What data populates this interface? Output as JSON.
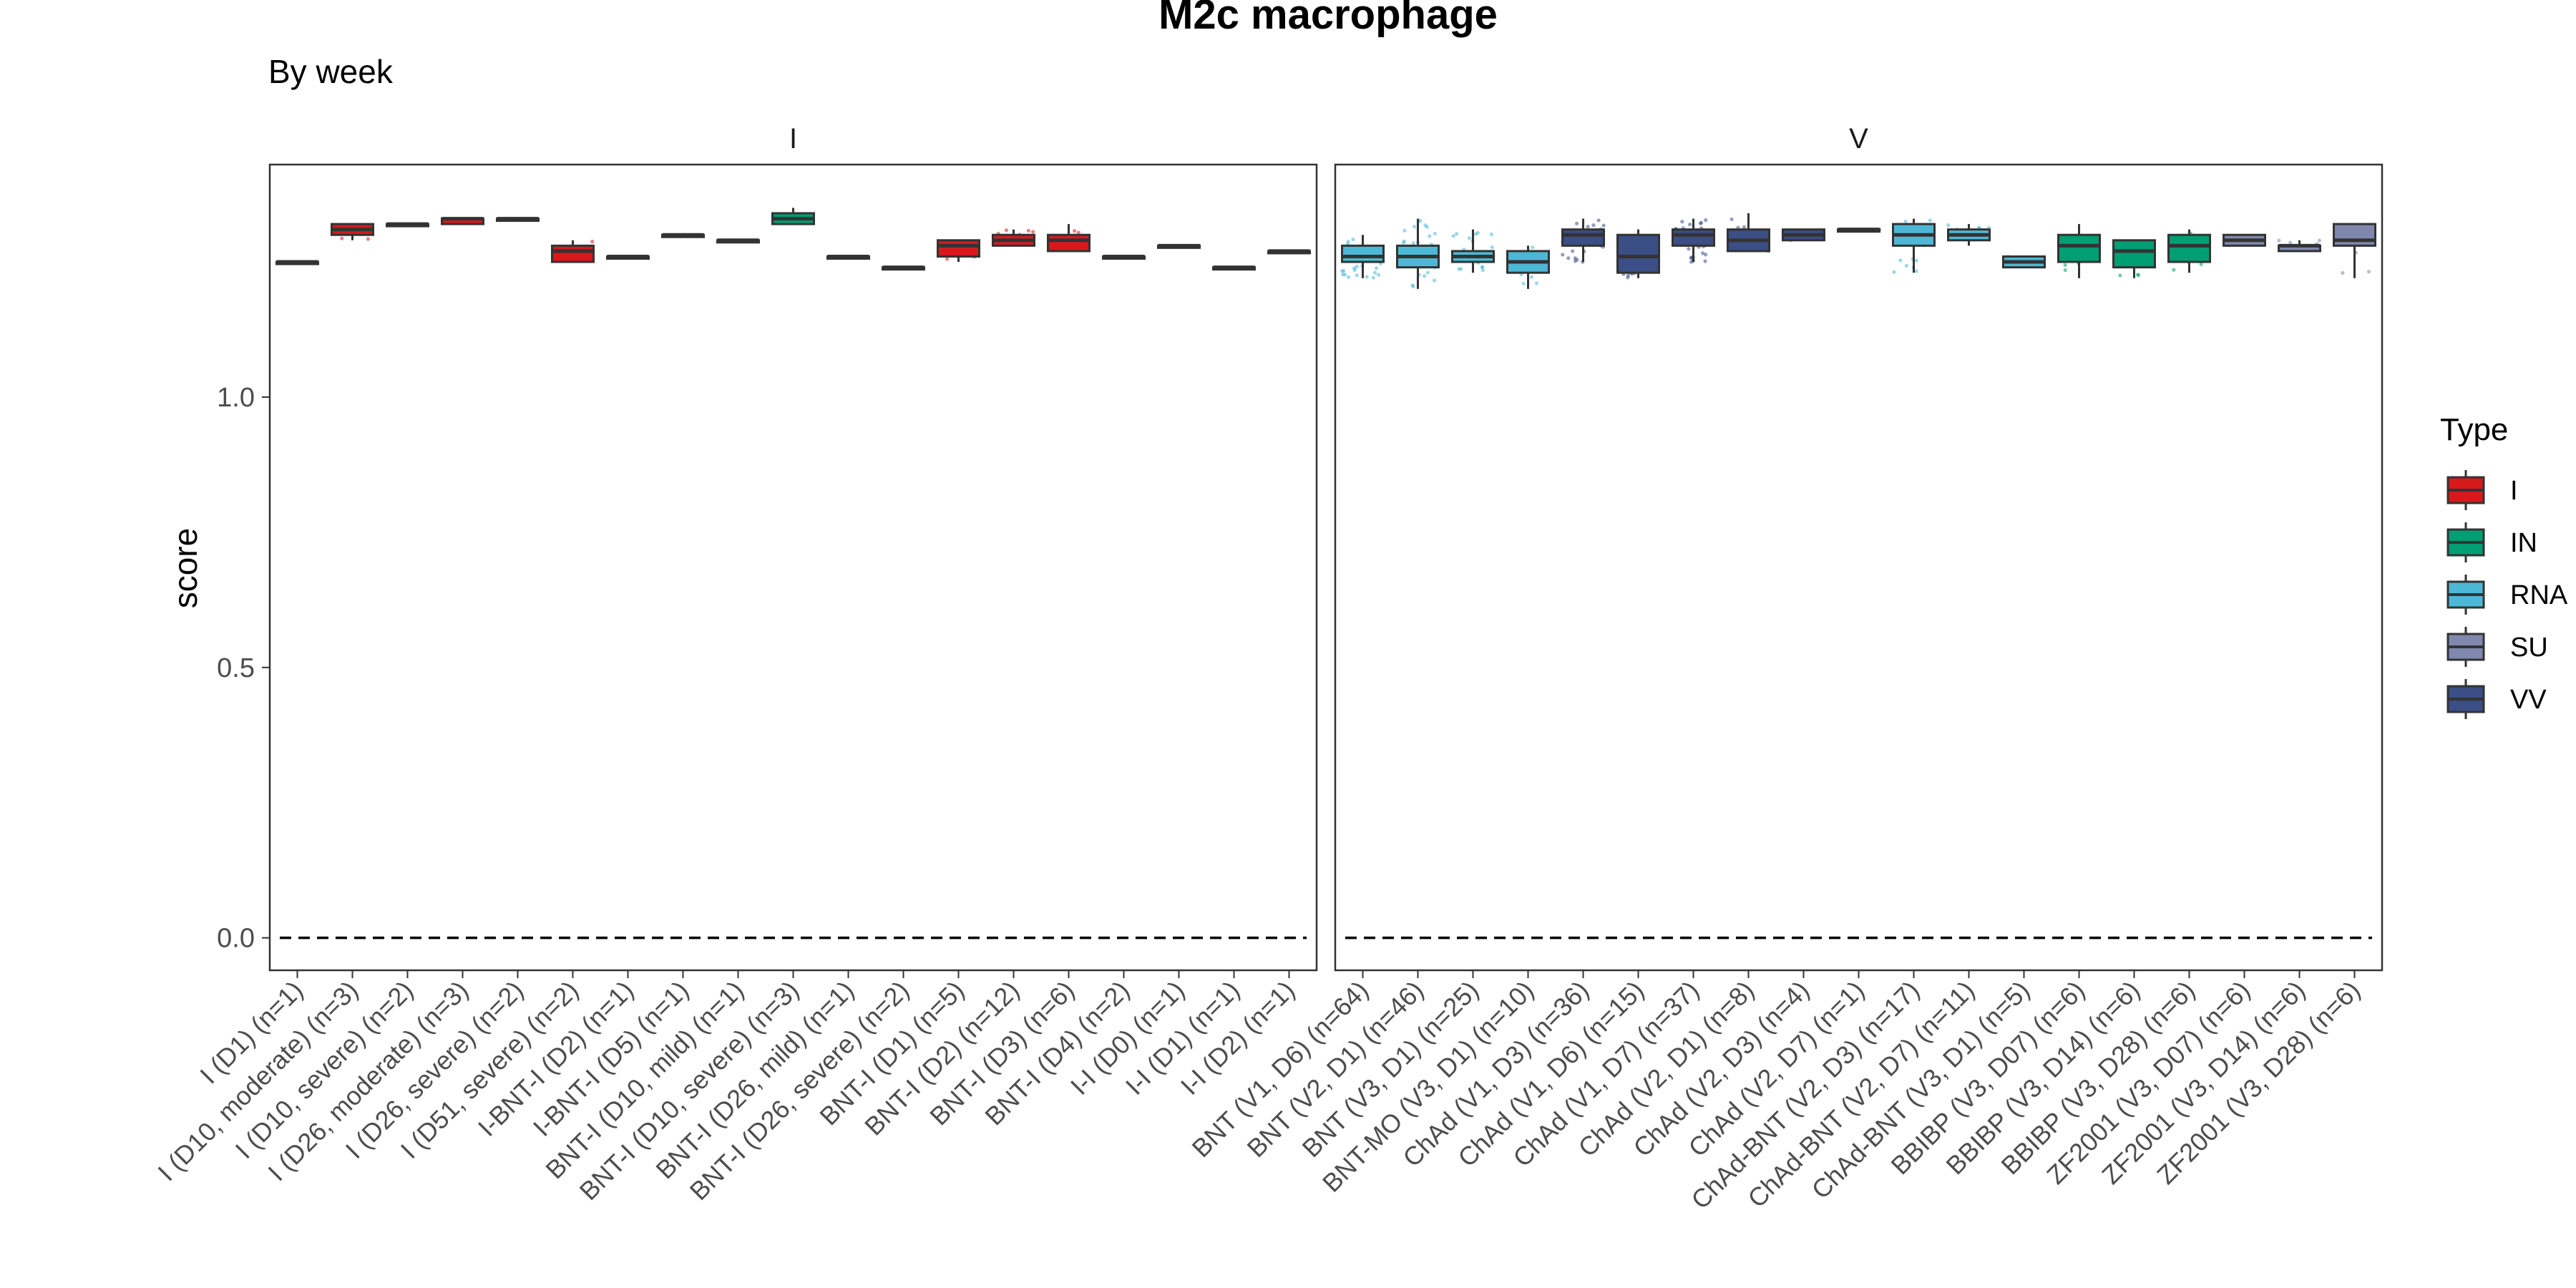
{
  "chart_data": {
    "type": "box",
    "title": "M2c macrophage",
    "subtitle": "By week",
    "ylabel": "score",
    "xlabel": "",
    "ylim": [
      -0.06,
      1.43
    ],
    "yticks": [
      "0.0",
      "0.5",
      "1.0"
    ],
    "yticks_values": [
      0.0,
      0.5,
      1.0
    ],
    "reference_line": 0,
    "grid": false,
    "legend": {
      "title": "Type",
      "placement": "right",
      "items": [
        {
          "label": "I",
          "color": "#d7191c"
        },
        {
          "label": "IN",
          "color": "#009e73"
        },
        {
          "label": "RNA",
          "color": "#4db8d6"
        },
        {
          "label": "SU",
          "color": "#8088ad"
        },
        {
          "label": "VV",
          "color": "#3b4e85"
        }
      ]
    },
    "type_colors": {
      "I": "#d7191c",
      "IN": "#009e73",
      "RNA": "#4db8d6",
      "SU": "#8088ad",
      "VV": "#3b4e85"
    },
    "panels": [
      {
        "strip": "I",
        "categories": [
          {
            "label": "I (D1) (n=1)",
            "type": "I",
            "q1": 1.25,
            "median": 1.25,
            "q3": 1.25,
            "min": 1.25,
            "max": 1.25
          },
          {
            "label": "I (D10, moderate) (n=3)",
            "type": "I",
            "q1": 1.3,
            "median": 1.31,
            "q3": 1.32,
            "min": 1.29,
            "max": 1.32
          },
          {
            "label": "I (D10, severe) (n=2)",
            "type": "I",
            "q1": 1.32,
            "median": 1.32,
            "q3": 1.32,
            "min": 1.32,
            "max": 1.32
          },
          {
            "label": "I (D26, moderate) (n=3)",
            "type": "I",
            "q1": 1.32,
            "median": 1.33,
            "q3": 1.33,
            "min": 1.32,
            "max": 1.33
          },
          {
            "label": "I (D26, severe) (n=2)",
            "type": "I",
            "q1": 1.33,
            "median": 1.33,
            "q3": 1.33,
            "min": 1.33,
            "max": 1.33
          },
          {
            "label": "I (D51, severe) (n=2)",
            "type": "I",
            "q1": 1.25,
            "median": 1.27,
            "q3": 1.28,
            "min": 1.25,
            "max": 1.29
          },
          {
            "label": "I-BNT-I (D2) (n=1)",
            "type": "I",
            "q1": 1.26,
            "median": 1.26,
            "q3": 1.26,
            "min": 1.26,
            "max": 1.26
          },
          {
            "label": "I-BNT-I (D5) (n=1)",
            "type": "I",
            "q1": 1.3,
            "median": 1.3,
            "q3": 1.3,
            "min": 1.3,
            "max": 1.3
          },
          {
            "label": "BNT-I (D10, mild) (n=1)",
            "type": "I",
            "q1": 1.29,
            "median": 1.29,
            "q3": 1.29,
            "min": 1.29,
            "max": 1.29
          },
          {
            "label": "BNT-I (D10, severe) (n=3)",
            "type": "IN",
            "q1": 1.32,
            "median": 1.33,
            "q3": 1.34,
            "min": 1.32,
            "max": 1.35
          },
          {
            "label": "BNT-I (D26, mild) (n=1)",
            "type": "I",
            "q1": 1.26,
            "median": 1.26,
            "q3": 1.26,
            "min": 1.26,
            "max": 1.26
          },
          {
            "label": "BNT-I (D26, severe) (n=2)",
            "type": "I",
            "q1": 1.24,
            "median": 1.24,
            "q3": 1.24,
            "min": 1.24,
            "max": 1.24
          },
          {
            "label": "BNT-I (D1) (n=5)",
            "type": "I",
            "q1": 1.26,
            "median": 1.28,
            "q3": 1.29,
            "min": 1.25,
            "max": 1.29
          },
          {
            "label": "BNT-I (D2) (n=12)",
            "type": "I",
            "q1": 1.28,
            "median": 1.29,
            "q3": 1.3,
            "min": 1.28,
            "max": 1.31
          },
          {
            "label": "BNT-I (D3) (n=6)",
            "type": "I",
            "q1": 1.27,
            "median": 1.29,
            "q3": 1.3,
            "min": 1.27,
            "max": 1.32
          },
          {
            "label": "BNT-I (D4) (n=2)",
            "type": "I",
            "q1": 1.26,
            "median": 1.26,
            "q3": 1.26,
            "min": 1.26,
            "max": 1.26
          },
          {
            "label": "I-I (D0) (n=1)",
            "type": "I",
            "q1": 1.28,
            "median": 1.28,
            "q3": 1.28,
            "min": 1.28,
            "max": 1.28
          },
          {
            "label": "I-I (D1) (n=1)",
            "type": "I",
            "q1": 1.24,
            "median": 1.24,
            "q3": 1.24,
            "min": 1.24,
            "max": 1.24
          },
          {
            "label": "I-I (D2) (n=1)",
            "type": "I",
            "q1": 1.27,
            "median": 1.27,
            "q3": 1.27,
            "min": 1.27,
            "max": 1.27
          }
        ]
      },
      {
        "strip": "V",
        "categories": [
          {
            "label": "BNT (V1, D6) (n=64)",
            "type": "RNA",
            "q1": 1.25,
            "median": 1.26,
            "q3": 1.28,
            "min": 1.22,
            "max": 1.3
          },
          {
            "label": "BNT (V2, D1) (n=46)",
            "type": "RNA",
            "q1": 1.24,
            "median": 1.26,
            "q3": 1.28,
            "min": 1.2,
            "max": 1.33
          },
          {
            "label": "BNT (V3, D1) (n=25)",
            "type": "RNA",
            "q1": 1.25,
            "median": 1.26,
            "q3": 1.27,
            "min": 1.23,
            "max": 1.31
          },
          {
            "label": "BNT-MO (V3, D1) (n=10)",
            "type": "RNA",
            "q1": 1.23,
            "median": 1.25,
            "q3": 1.27,
            "min": 1.2,
            "max": 1.28
          },
          {
            "label": "ChAd (V1, D3) (n=36)",
            "type": "VV",
            "q1": 1.28,
            "median": 1.3,
            "q3": 1.31,
            "min": 1.25,
            "max": 1.33
          },
          {
            "label": "ChAd (V1, D6) (n=15)",
            "type": "VV",
            "q1": 1.23,
            "median": 1.26,
            "q3": 1.3,
            "min": 1.22,
            "max": 1.31
          },
          {
            "label": "ChAd (V1, D7) (n=37)",
            "type": "VV",
            "q1": 1.28,
            "median": 1.3,
            "q3": 1.31,
            "min": 1.25,
            "max": 1.33
          },
          {
            "label": "ChAd (V2, D1) (n=8)",
            "type": "VV",
            "q1": 1.27,
            "median": 1.29,
            "q3": 1.31,
            "min": 1.27,
            "max": 1.34
          },
          {
            "label": "ChAd (V2, D3) (n=4)",
            "type": "VV",
            "q1": 1.29,
            "median": 1.3,
            "q3": 1.31,
            "min": 1.29,
            "max": 1.31
          },
          {
            "label": "ChAd (V2, D7) (n=1)",
            "type": "VV",
            "q1": 1.31,
            "median": 1.31,
            "q3": 1.31,
            "min": 1.31,
            "max": 1.31
          },
          {
            "label": "ChAd-BNT (V2, D3) (n=17)",
            "type": "RNA",
            "q1": 1.28,
            "median": 1.3,
            "q3": 1.32,
            "min": 1.23,
            "max": 1.33
          },
          {
            "label": "ChAd-BNT (V2, D7) (n=11)",
            "type": "RNA",
            "q1": 1.29,
            "median": 1.3,
            "q3": 1.31,
            "min": 1.28,
            "max": 1.32
          },
          {
            "label": "ChAd-BNT (V3, D1) (n=5)",
            "type": "RNA",
            "q1": 1.24,
            "median": 1.25,
            "q3": 1.26,
            "min": 1.24,
            "max": 1.26
          },
          {
            "label": "BBIBP (V3, D07) (n=6)",
            "type": "IN",
            "q1": 1.25,
            "median": 1.28,
            "q3": 1.3,
            "min": 1.22,
            "max": 1.32
          },
          {
            "label": "BBIBP (V3, D14) (n=6)",
            "type": "IN",
            "q1": 1.24,
            "median": 1.27,
            "q3": 1.29,
            "min": 1.22,
            "max": 1.29
          },
          {
            "label": "BBIBP (V3, D28) (n=6)",
            "type": "IN",
            "q1": 1.25,
            "median": 1.28,
            "q3": 1.3,
            "min": 1.23,
            "max": 1.31
          },
          {
            "label": "ZF2001 (V3, D07) (n=6)",
            "type": "SU",
            "q1": 1.28,
            "median": 1.29,
            "q3": 1.3,
            "min": 1.28,
            "max": 1.3
          },
          {
            "label": "ZF2001 (V3, D14) (n=6)",
            "type": "SU",
            "q1": 1.27,
            "median": 1.28,
            "q3": 1.28,
            "min": 1.27,
            "max": 1.29
          },
          {
            "label": "ZF2001 (V3, D28) (n=6)",
            "type": "SU",
            "q1": 1.28,
            "median": 1.29,
            "q3": 1.32,
            "min": 1.22,
            "max": 1.32
          }
        ]
      }
    ]
  }
}
